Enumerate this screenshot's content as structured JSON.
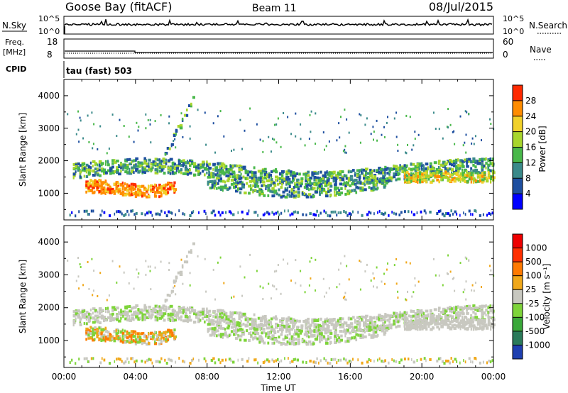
{
  "header": {
    "station": "Goose Bay (fitACF)",
    "beam": "Beam 11",
    "date": "08/Jul/2015"
  },
  "top_panels": {
    "nsky_label": "N.Sky",
    "nsky_ticks": [
      "10^5",
      "10^0"
    ],
    "nsearch_label": "N.Search",
    "nsearch_ticks": [
      "10^5",
      "10^0"
    ],
    "freq_label": "Freq.",
    "freq_unit": "[MHz]",
    "freq_ticks": [
      "18",
      "8"
    ],
    "nave_label": "Nave",
    "nave_ticks": [
      "60",
      "0"
    ],
    "cpid_label": "CPID",
    "cpid_value": "tau (fast) 503"
  },
  "chart_data": [
    {
      "type": "heatmap",
      "name": "power",
      "ylabel": "Slant Range [km]",
      "ylim": [
        180,
        4500
      ],
      "yticks": [
        "4000",
        "3000",
        "2000",
        "1000"
      ],
      "yticks_values": [
        4000,
        3000,
        2000,
        1000
      ],
      "colorbar_label": "Power [dB]",
      "colorbar_ticks": [
        "28",
        "24",
        "20",
        "16",
        "12",
        "8",
        "4"
      ],
      "colorbar_colors": [
        "#0000ff",
        "#1e4fa0",
        "#3a8a8a",
        "#49b84a",
        "#a8d62c",
        "#f1d12a",
        "#ff8c00",
        "#ff2a00"
      ]
    },
    {
      "type": "heatmap",
      "name": "velocity",
      "ylabel": "Slant Range [km]",
      "ylim": [
        180,
        4500
      ],
      "yticks": [
        "4000",
        "3000",
        "2000",
        "1000"
      ],
      "yticks_values": [
        4000,
        3000,
        2000,
        1000
      ],
      "colorbar_label": "Velocity [m s⁻¹]",
      "colorbar_ticks": [
        "1000",
        "500",
        "100",
        "25",
        "-25",
        "-100",
        "-500",
        "-1000"
      ],
      "colorbar_colors": [
        "#1e3fb0",
        "#2a7a5a",
        "#3aa83a",
        "#7ed43a",
        "#c8c8c0",
        "#f0a81a",
        "#ff7a00",
        "#ff3000",
        "#ee0000"
      ]
    }
  ],
  "time_axis": {
    "label": "Time UT",
    "ticks": [
      "00:00",
      "04:00",
      "08:00",
      "12:00",
      "16:00",
      "20:00",
      "00:00"
    ],
    "tick_hours": [
      0,
      4,
      8,
      12,
      16,
      20,
      24
    ]
  }
}
